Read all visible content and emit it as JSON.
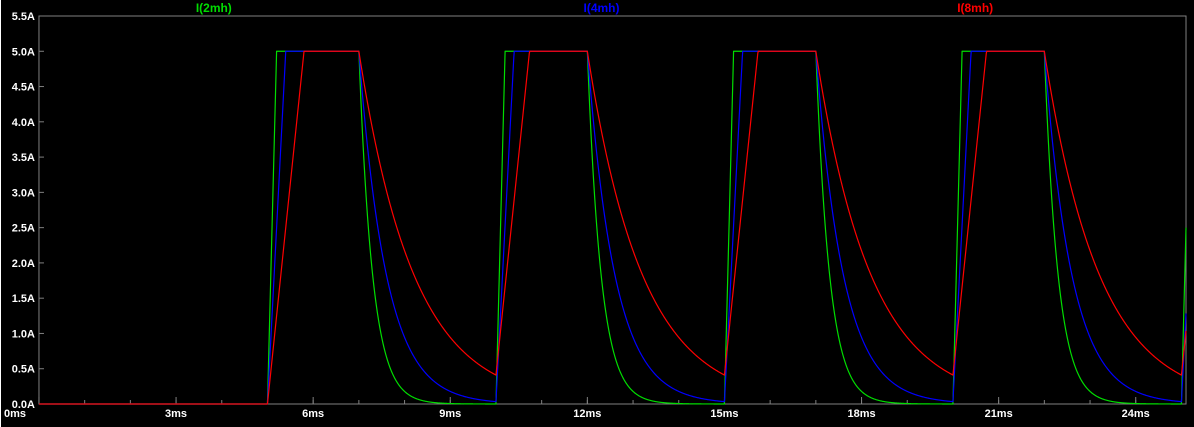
{
  "window": {
    "background": "#000000",
    "frame_color": "#808080",
    "axis_text_color": "#ffffff"
  },
  "legend": {
    "items": [
      {
        "label": "I(2mh)",
        "color": "#00dd00"
      },
      {
        "label": "I(4mh)",
        "color": "#0000ff"
      },
      {
        "label": "I(8mh)",
        "color": "#ff0000"
      }
    ]
  },
  "chart_data": {
    "type": "line",
    "title": "",
    "xlim": [
      0,
      25.1
    ],
    "ylim": [
      0,
      5.5
    ],
    "grid": false,
    "legend_position": "top",
    "x_unit": "ms",
    "y_unit": "A",
    "x_ticks": [
      {
        "value": 0,
        "label": "0ms"
      },
      {
        "value": 3,
        "label": "3ms"
      },
      {
        "value": 6,
        "label": "6ms"
      },
      {
        "value": 9,
        "label": "9ms"
      },
      {
        "value": 12,
        "label": "12ms"
      },
      {
        "value": 15,
        "label": "15ms"
      },
      {
        "value": 18,
        "label": "18ms"
      },
      {
        "value": 21,
        "label": "21ms"
      },
      {
        "value": 24,
        "label": "24ms"
      }
    ],
    "x_minor_tick_step_ms": 1,
    "y_ticks": [
      {
        "value": 0.0,
        "label": "0.0A"
      },
      {
        "value": 0.5,
        "label": "0.5A"
      },
      {
        "value": 1.0,
        "label": "1.0A"
      },
      {
        "value": 1.5,
        "label": "1.5A"
      },
      {
        "value": 2.0,
        "label": "2.0A"
      },
      {
        "value": 2.5,
        "label": "2.5A"
      },
      {
        "value": 3.0,
        "label": "3.0A"
      },
      {
        "value": 3.5,
        "label": "3.5A"
      },
      {
        "value": 4.0,
        "label": "4.0A"
      },
      {
        "value": 4.5,
        "label": "4.5A"
      },
      {
        "value": 5.0,
        "label": "5.0A"
      },
      {
        "value": 5.5,
        "label": "5.5A"
      }
    ],
    "series": [
      {
        "name": "I(2mh)",
        "color": "#00dd00",
        "waveform": {
          "kind": "pulse-train",
          "amplitude_A": 5.0,
          "first_rise_ms": 5.0,
          "period_ms": 5.0,
          "on_time_ms": 2.0,
          "ramp_rise_ms": 0.2,
          "decay_tau_ms": 0.3,
          "baseline_A": 0.0
        }
      },
      {
        "name": "I(4mh)",
        "color": "#0000ff",
        "waveform": {
          "kind": "pulse-train",
          "amplitude_A": 5.0,
          "first_rise_ms": 5.0,
          "period_ms": 5.0,
          "on_time_ms": 2.0,
          "ramp_rise_ms": 0.4,
          "decay_tau_ms": 0.6,
          "baseline_A": 0.0
        }
      },
      {
        "name": "I(8mh)",
        "color": "#ff0000",
        "waveform": {
          "kind": "pulse-train",
          "amplitude_A": 5.0,
          "first_rise_ms": 5.0,
          "period_ms": 5.0,
          "on_time_ms": 2.0,
          "ramp_rise_ms": 0.8,
          "decay_tau_ms": 1.2,
          "baseline_A": 0.0
        }
      }
    ]
  }
}
